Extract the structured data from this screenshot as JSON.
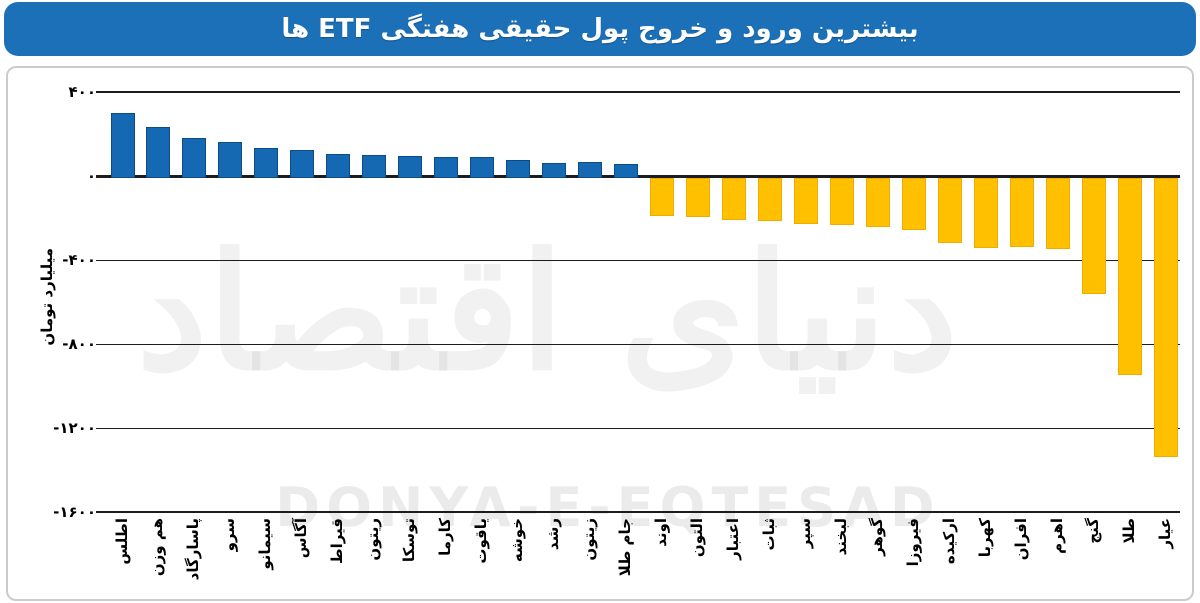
{
  "title": "بیشترین ورود و خروج پول حقیقی هفتگی ETF ها",
  "watermark": {
    "fa": "دنیای اقتصاد",
    "en": "DONYA-E-EQTESAD"
  },
  "y_axis": {
    "title": "میلیارد تومان",
    "ticks": [
      {
        "value": 400,
        "label": "۴۰۰"
      },
      {
        "value": 0,
        "label": "۰"
      },
      {
        "value": -400,
        "label": "-۴۰۰"
      },
      {
        "value": -800,
        "label": "-۸۰۰"
      },
      {
        "value": -1200,
        "label": "-۱۲۰۰"
      },
      {
        "value": -1600,
        "label": "-۱۶۰۰"
      }
    ]
  },
  "chart_data": {
    "type": "bar",
    "title": "بیشترین ورود و خروج پول حقیقی هفتگی ETF ها",
    "xlabel": "",
    "ylabel": "میلیارد تومان",
    "ylim": [
      -1600,
      400
    ],
    "grid": "horizontal",
    "legend": "none",
    "categories": [
      "اطلس",
      "هم وزن",
      "پاسارگاد",
      "سرو",
      "سیمانو",
      "آگاس",
      "قیراط",
      "ریتون",
      "توسکا",
      "کارما",
      "یاقوت",
      "خوشه",
      "رشد",
      "زیتون",
      "جام طلا",
      "اوند",
      "التون",
      "اعتبار",
      "ثبات",
      "سپر",
      "لبخند",
      "گوهر",
      "فیروزا",
      "ارکیده",
      "کهربا",
      "افران",
      "اهرم",
      "گنج",
      "طلا",
      "عیار"
    ],
    "values": [
      300,
      235,
      180,
      160,
      131,
      125,
      107,
      102,
      95,
      91,
      92,
      74,
      62,
      65,
      58,
      -175,
      -178,
      -195,
      -198,
      -214,
      -217,
      -226,
      -242,
      -300,
      -325,
      -321,
      -332,
      -547,
      -930,
      -1320
    ],
    "colors": {
      "inflow": "#1569B3",
      "outflow": "#FFC000"
    }
  }
}
